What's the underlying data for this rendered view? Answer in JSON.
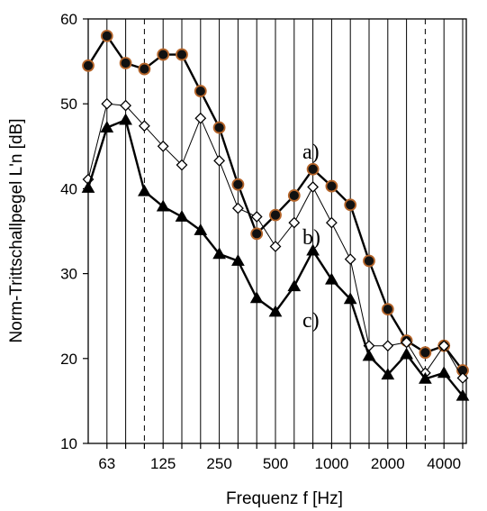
{
  "chart_data": {
    "type": "line",
    "title": "",
    "xlabel": "Frequenz f [Hz]",
    "ylabel": "Norm-Trittschallpegel L'n [dB]",
    "x": [
      50,
      63,
      80,
      100,
      125,
      160,
      200,
      250,
      315,
      400,
      500,
      630,
      800,
      1000,
      1250,
      1600,
      2000,
      2500,
      3150,
      4000,
      5000
    ],
    "x_scale": "log (one-third-octave bands)",
    "x_tick_labels": [
      "63",
      "125",
      "250",
      "500",
      "1000",
      "2000",
      "4000"
    ],
    "ylim": [
      10,
      60
    ],
    "y_ticks": [
      10,
      20,
      30,
      40,
      50,
      60
    ],
    "grid": "vertical lines at each band, solid; dashed at 100 Hz and 3150 Hz",
    "legend": "inline labels next to curves",
    "series": [
      {
        "name": "a)",
        "marker": "filled circle",
        "color": "#000000",
        "marker_fill": "#111111",
        "marker_edge": "#b5652a",
        "values": [
          54.5,
          58,
          54.8,
          54.1,
          55.8,
          55.8,
          51.5,
          47.2,
          40.5,
          34.7,
          36.9,
          39.2,
          42.3,
          40.3,
          38.1,
          31.5,
          25.8,
          22.1,
          20.7,
          21.5,
          18.6
        ]
      },
      {
        "name": "b)",
        "marker": "open diamond",
        "color": "#000000",
        "values": [
          41.1,
          50,
          49.8,
          47.4,
          45,
          42.8,
          48.3,
          43.3,
          37.7,
          36.7,
          33.2,
          36,
          40.2,
          36,
          31.7,
          21.5,
          21.5,
          21.9,
          18.3,
          21.5,
          17.7
        ]
      },
      {
        "name": "c)",
        "marker": "filled triangle",
        "color": "#000000",
        "values": [
          40.1,
          47.2,
          48.1,
          39.7,
          37.9,
          36.7,
          35.1,
          32.3,
          31.5,
          27.1,
          25.5,
          28.5,
          32.7,
          29.3,
          27,
          20.3,
          18.1,
          20.5,
          17.6,
          18.3,
          15.6
        ]
      }
    ],
    "annotations": [
      "a)",
      "b)",
      "c)"
    ]
  }
}
